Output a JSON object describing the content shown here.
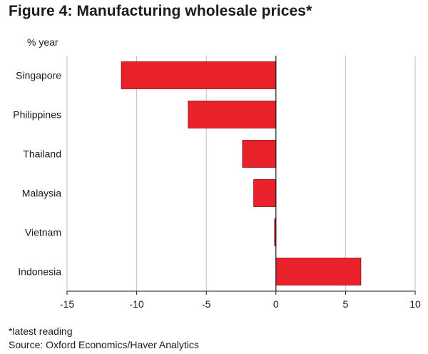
{
  "title": "Figure 4: Manufacturing wholesale prices*",
  "footnote": "*latest reading",
  "source": "Source: Oxford Economics/Haver Analytics",
  "chart_data": {
    "type": "bar",
    "orientation": "horizontal",
    "title": "Figure 4: Manufacturing wholesale prices*",
    "unit_label": "% year",
    "categories": [
      "Singapore",
      "Philippines",
      "Thailand",
      "Malaysia",
      "Vietnam",
      "Indonesia"
    ],
    "values": [
      -11.1,
      -6.3,
      -2.4,
      -1.6,
      -0.1,
      6.1
    ],
    "xlim": [
      -15,
      10
    ],
    "xticks": [
      -15,
      -10,
      -5,
      0,
      5,
      10
    ],
    "xtick_labels": [
      "-15",
      "-10",
      "-5",
      "0",
      "5",
      "10"
    ],
    "grid": true,
    "bar_color": "#e8212b",
    "bar_edge_color": "#8a1015"
  }
}
